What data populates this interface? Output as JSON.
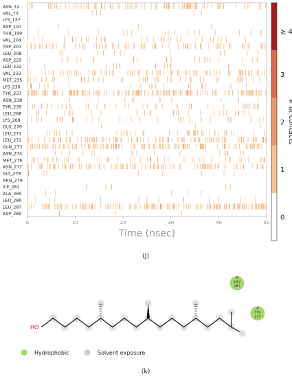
{
  "chart_data": {
    "type": "heatmap",
    "xlabel": "Time (nsec)",
    "xlim": [
      0,
      50
    ],
    "xticks": [
      0,
      10,
      20,
      30,
      40,
      50
    ],
    "residues": [
      "ASN_72",
      "VAL_73",
      "LYS_137",
      "ASP_197",
      "THR_199",
      "VAL_204",
      "TRP_207",
      "LEU_208",
      "ASP_229",
      "LEU_232",
      "VAL_233",
      "MET_235",
      "LYS_236",
      "TYR_237",
      "ASN_238",
      "TYR_239",
      "LEU_268",
      "LYS_269",
      "GLU_270",
      "LEU_271",
      "LEU_272",
      "GLN_273",
      "ASN_274",
      "MET_276",
      "ASN_277",
      "GLY_278",
      "ARG_279",
      "ILE_281",
      "ALA_285",
      "LEU_286",
      "LEU_287",
      "ASP_289"
    ],
    "density": [
      0.35,
      0.02,
      0.0,
      0.01,
      0.06,
      0.12,
      0.25,
      0.05,
      0.08,
      0.04,
      0.3,
      0.18,
      0.08,
      0.55,
      0.04,
      0.15,
      0.12,
      0.12,
      0.01,
      0.15,
      0.38,
      0.45,
      0.06,
      0.2,
      0.35,
      0.03,
      0.0,
      0.02,
      0.02,
      0.05,
      0.55,
      0.01
    ],
    "colorbar": {
      "title": "# of contacts",
      "labels": [
        "0",
        "1",
        "2",
        "3",
        "≥ 4"
      ],
      "colors": [
        "#ffffff",
        "#f5c08e",
        "#ec9763",
        "#e3653f",
        "#b01818"
      ]
    }
  },
  "panel_j": "(j)",
  "panel_k": "(k)",
  "diagram": {
    "hydroxyl_label": "HO",
    "residue_tags": [
      {
        "chain": "A",
        "name": "LEU",
        "number": "287"
      },
      {
        "chain": "A",
        "name": "TYR",
        "number": "237"
      }
    ],
    "legend": {
      "hydrophobic": "Hydrophobic",
      "solvent_exposure": "Solvent exposure"
    },
    "colors": {
      "hydrophobic": "#a8d86a",
      "solvent": "#cccccc"
    }
  }
}
